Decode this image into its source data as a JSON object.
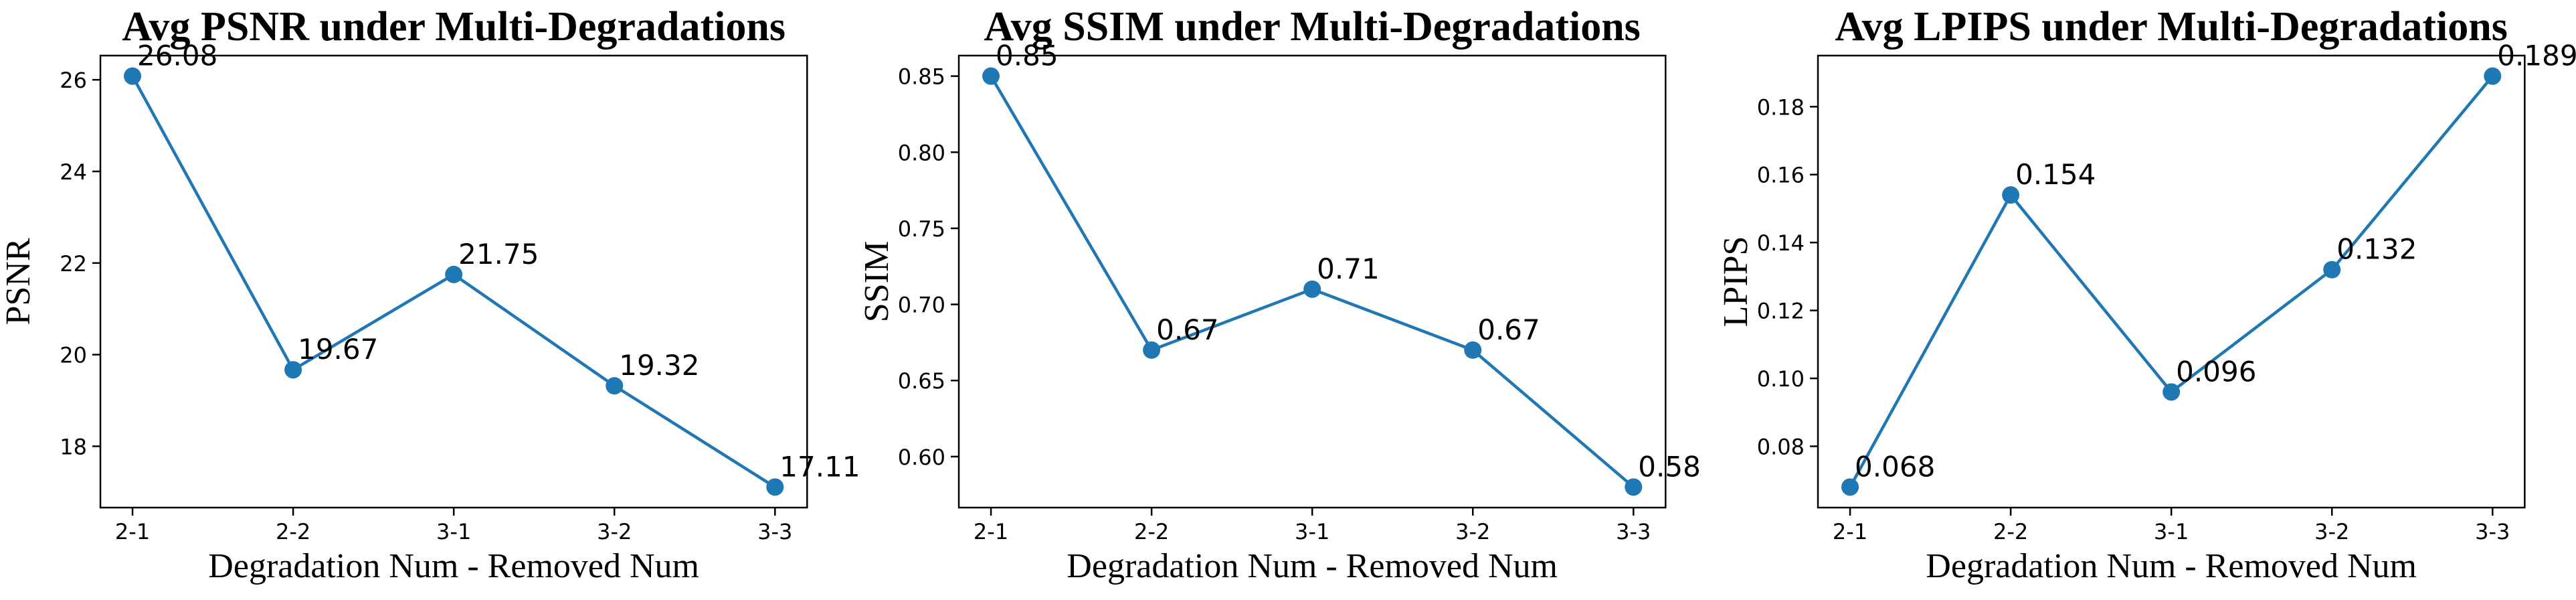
{
  "page": {
    "background": "#ffffff",
    "text_color": "#000000",
    "axis_color": "#000000",
    "accent_color": "#1f77b4"
  },
  "chart_data": [
    {
      "type": "line",
      "title": "Avg PSNR under Multi-Degradations",
      "xlabel": "Degradation Num - Removed Num",
      "ylabel": "PSNR",
      "categories": [
        "2-1",
        "2-2",
        "3-1",
        "3-2",
        "3-3"
      ],
      "values": [
        26.08,
        19.67,
        21.75,
        19.32,
        17.11
      ],
      "point_labels": [
        "26.08",
        "19.67",
        "21.75",
        "19.32",
        "17.11"
      ],
      "yticks": [
        18,
        20,
        22,
        24,
        26
      ],
      "ytick_labels": [
        "18",
        "20",
        "22",
        "24",
        "26"
      ],
      "ylim": [
        16.6615,
        26.5285
      ],
      "grid": false,
      "legend": null,
      "line_color": "#1f77b4",
      "marker": "circle"
    },
    {
      "type": "line",
      "title": "Avg SSIM under Multi-Degradations",
      "xlabel": "Degradation Num - Removed Num",
      "ylabel": "SSIM",
      "categories": [
        "2-1",
        "2-2",
        "3-1",
        "3-2",
        "3-3"
      ],
      "values": [
        0.85,
        0.67,
        0.71,
        0.67,
        0.58
      ],
      "point_labels": [
        "0.85",
        "0.67",
        "0.71",
        "0.67",
        "0.58"
      ],
      "yticks": [
        0.6,
        0.65,
        0.7,
        0.75,
        0.8,
        0.85
      ],
      "ytick_labels": [
        "0.60",
        "0.65",
        "0.70",
        "0.75",
        "0.80",
        "0.85"
      ],
      "ylim": [
        0.5665,
        0.8635
      ],
      "grid": false,
      "legend": null,
      "line_color": "#1f77b4",
      "marker": "circle"
    },
    {
      "type": "line",
      "title": "Avg LPIPS under Multi-Degradations",
      "xlabel": "Degradation Num - Removed Num",
      "ylabel": "LPIPS",
      "categories": [
        "2-1",
        "2-2",
        "3-1",
        "3-2",
        "3-3"
      ],
      "values": [
        0.068,
        0.154,
        0.096,
        0.132,
        0.189
      ],
      "point_labels": [
        "0.068",
        "0.154",
        "0.096",
        "0.132",
        "0.189"
      ],
      "yticks": [
        0.08,
        0.1,
        0.12,
        0.14,
        0.16,
        0.18
      ],
      "ytick_labels": [
        "0.08",
        "0.10",
        "0.12",
        "0.14",
        "0.16",
        "0.18"
      ],
      "ylim": [
        0.06195,
        0.19505
      ],
      "grid": false,
      "legend": null,
      "line_color": "#1f77b4",
      "marker": "circle"
    }
  ]
}
